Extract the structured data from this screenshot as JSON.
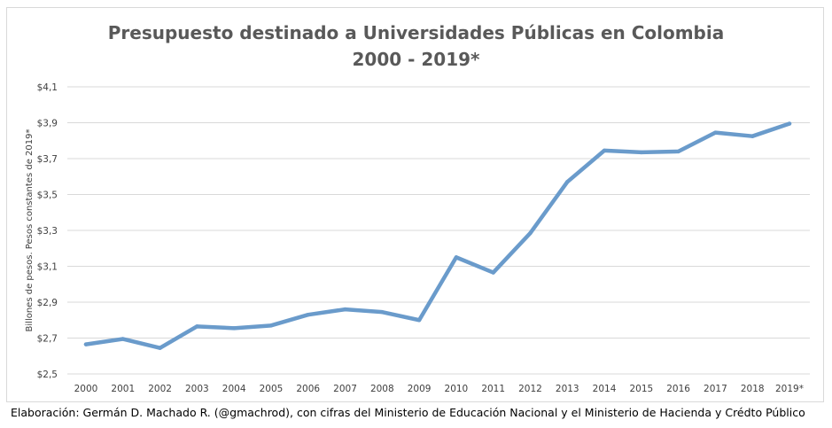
{
  "chart_data": {
    "type": "line",
    "title": "Presupuesto destinado a Universidades Públicas en Colombia",
    "subtitle": "2000 - 2019*",
    "xlabel": "",
    "ylabel": "Billones de pesos. Pesos constantes de 2019*",
    "categories": [
      "2000",
      "2001",
      "2002",
      "2003",
      "2004",
      "2005",
      "2006",
      "2007",
      "2008",
      "2009",
      "2010",
      "2011",
      "2012",
      "2013",
      "2014",
      "2015",
      "2016",
      "2017",
      "2018",
      "2019*"
    ],
    "series": [
      {
        "name": "Presupuesto",
        "values": [
          2.665,
          2.695,
          2.645,
          2.765,
          2.755,
          2.77,
          2.83,
          2.86,
          2.845,
          2.8,
          3.15,
          3.065,
          3.285,
          3.57,
          3.745,
          3.735,
          3.74,
          3.845,
          3.825,
          3.895
        ],
        "color": "#6a9bcb"
      }
    ],
    "ylim": [
      2.5,
      4.1
    ],
    "yticks": [
      2.5,
      2.7,
      2.9,
      3.1,
      3.3,
      3.5,
      3.7,
      3.9,
      4.1
    ],
    "ytick_labels": [
      "$2,5",
      "$2,7",
      "$2,9",
      "$3,1",
      "$3,3",
      "$3,5",
      "$3,7",
      "$3,9",
      "$4,1"
    ],
    "grid": true,
    "legend": "none"
  },
  "caption": "Elaboración: Germán D. Machado R. (@gmachrod), con cifras del Ministerio de Educación Nacional y el Ministerio de Hacienda y Crédto Público",
  "colors": {
    "line": "#6a9bcb",
    "grid": "#d9d9d9",
    "title": "#595959"
  }
}
